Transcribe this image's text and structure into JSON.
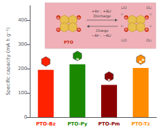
{
  "chart_data": {
    "type": "bar",
    "categories": [
      "PTO-Bz",
      "PTO-Py",
      "PTO-Pm",
      "PTO-Tz"
    ],
    "values": [
      195,
      218,
      133,
      203
    ],
    "colors": [
      "#ff2200",
      "#1a8800",
      "#8b0000",
      "#ff8c00"
    ],
    "ylabel": "Specific capacity (mA h g⁻¹)",
    "ylim": [
      0,
      460
    ],
    "yticks": [
      0,
      100,
      200,
      300,
      400
    ],
    "grid": false,
    "annotations": [
      {
        "text": "N",
        "category": "PTO-Py"
      },
      {
        "text": "N",
        "category": "PTO-Pm"
      },
      {
        "text": "N",
        "category": "PTO-Tz"
      },
      {
        "text": "N",
        "category": "PTO-Tz"
      },
      {
        "text": "O"
      },
      {
        "text": "O"
      },
      {
        "text": "O"
      },
      {
        "text": "O"
      },
      {
        "text": "PTO"
      },
      {
        "text": "+4e⁻, +4Li⁺"
      },
      {
        "text": "Discharge"
      },
      {
        "text": "Charge"
      },
      {
        "text": "−4e⁻, −4Li⁺"
      },
      {
        "text": "O"
      },
      {
        "text": "O"
      },
      {
        "text": "O"
      },
      {
        "text": "O"
      },
      {
        "text": "Li"
      },
      {
        "text": "Li"
      },
      {
        "text": "Li"
      },
      {
        "text": "Li"
      },
      {
        "text": "LiO"
      },
      {
        "text": "OLi"
      },
      {
        "text": "LiO"
      },
      {
        "text": "OLi"
      }
    ]
  }
}
